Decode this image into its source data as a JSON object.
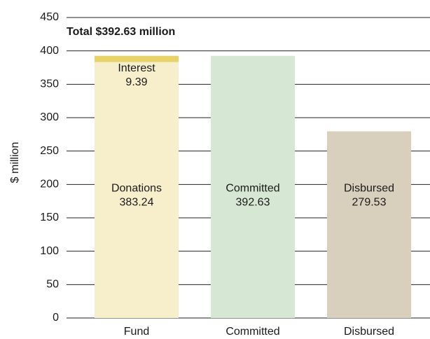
{
  "chart_data": {
    "type": "stacked_bar",
    "annotation": "Total $392.63 million",
    "y_label": "$ million",
    "categories": [
      "Fund",
      "Committed",
      "Disbursed"
    ],
    "series": [
      {
        "name": "Donations",
        "color": "#f7efcc",
        "values": [
          383.24,
          null,
          null
        ]
      },
      {
        "name": "Interest",
        "color": "#e8d36a",
        "values": [
          9.39,
          null,
          null
        ]
      },
      {
        "name": "Committed",
        "color": "#d6e8d3",
        "values": [
          null,
          392.63,
          null
        ]
      },
      {
        "name": "Disbursed",
        "color": "#d9cfbd",
        "values": [
          null,
          null,
          279.53
        ]
      }
    ],
    "ylim": [
      0,
      450
    ],
    "yticks": [
      0,
      50,
      100,
      150,
      200,
      250,
      300,
      350,
      400,
      450
    ],
    "grid": true
  }
}
